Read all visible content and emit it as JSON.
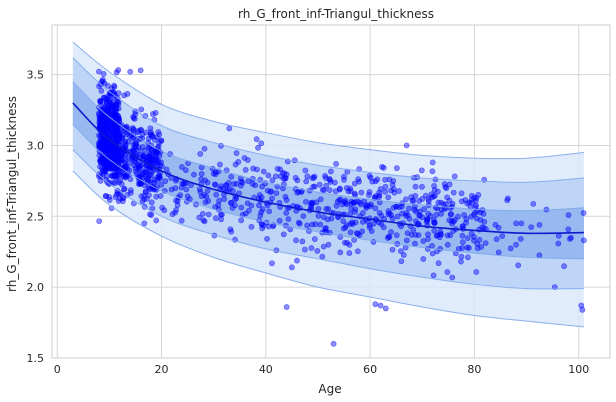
{
  "chart_data": {
    "type": "scatter",
    "title": "rh_G_front_inf-Triangul_thickness",
    "xlabel": "Age",
    "ylabel": "rh_G_front_inf-Triangul_thickness",
    "xlim": [
      -1,
      106
    ],
    "ylim": [
      1.5,
      3.85
    ],
    "x_ticks": [
      0,
      20,
      40,
      60,
      80,
      100
    ],
    "y_ticks": [
      1.5,
      2.0,
      2.5,
      3.0,
      3.5
    ],
    "grid": true,
    "colors": {
      "points": "#0000ff",
      "median_line": "#0a1acc",
      "band_outer": "#dbe7fb",
      "band_middle": "#b9d1f7",
      "band_inner": "#8fb4ef",
      "band_edges": "#7fa8ea"
    },
    "centile_curves": {
      "age": [
        3,
        10,
        20,
        30,
        40,
        50,
        60,
        70,
        80,
        90,
        101
      ],
      "p50": [
        3.3,
        3.04,
        2.82,
        2.69,
        2.6,
        2.53,
        2.48,
        2.43,
        2.4,
        2.38,
        2.385
      ],
      "p25": [
        3.15,
        2.9,
        2.68,
        2.55,
        2.46,
        2.39,
        2.33,
        2.28,
        2.24,
        2.21,
        2.2
      ],
      "p75": [
        3.45,
        3.2,
        2.96,
        2.84,
        2.74,
        2.67,
        2.62,
        2.58,
        2.55,
        2.54,
        2.56
      ],
      "p05": [
        2.97,
        2.73,
        2.5,
        2.37,
        2.27,
        2.2,
        2.13,
        2.07,
        2.02,
        1.99,
        1.99
      ],
      "p95": [
        3.62,
        3.38,
        3.14,
        3.02,
        2.93,
        2.86,
        2.81,
        2.77,
        2.75,
        2.74,
        2.77
      ],
      "p01": [
        2.82,
        2.58,
        2.36,
        2.21,
        2.1,
        2.0,
        1.93,
        1.86,
        1.8,
        1.76,
        1.72
      ],
      "p99": [
        3.73,
        3.52,
        3.29,
        3.17,
        3.09,
        3.02,
        2.97,
        2.93,
        2.91,
        2.91,
        2.95
      ]
    },
    "points_generator": {
      "count": 1400,
      "age_groups": [
        {
          "range": [
            8,
            12
          ],
          "share": 0.36,
          "center": 3.05,
          "spread": 0.17
        },
        {
          "range": [
            12,
            20
          ],
          "share": 0.2,
          "center": 2.88,
          "spread": 0.15
        },
        {
          "range": [
            20,
            50
          ],
          "share": 0.17,
          "center": 2.65,
          "spread": 0.16
        },
        {
          "range": [
            50,
            82
          ],
          "share": 0.25,
          "center": 2.5,
          "spread": 0.15
        },
        {
          "range": [
            82,
            101
          ],
          "share": 0.02,
          "center": 2.35,
          "spread": 0.15
        }
      ],
      "outliers": [
        {
          "x": 44,
          "y": 1.86
        },
        {
          "x": 53,
          "y": 1.6
        },
        {
          "x": 61,
          "y": 1.88
        },
        {
          "x": 62,
          "y": 1.87
        },
        {
          "x": 63,
          "y": 1.85
        },
        {
          "x": 100.5,
          "y": 1.87
        },
        {
          "x": 100.7,
          "y": 1.84
        },
        {
          "x": 89,
          "y": 2.45
        },
        {
          "x": 88,
          "y": 2.45
        },
        {
          "x": 45,
          "y": 2.14
        },
        {
          "x": 14,
          "y": 3.52
        },
        {
          "x": 16,
          "y": 3.53
        },
        {
          "x": 33,
          "y": 3.12
        },
        {
          "x": 72,
          "y": 2.88
        },
        {
          "x": 67,
          "y": 3.0
        }
      ]
    }
  }
}
